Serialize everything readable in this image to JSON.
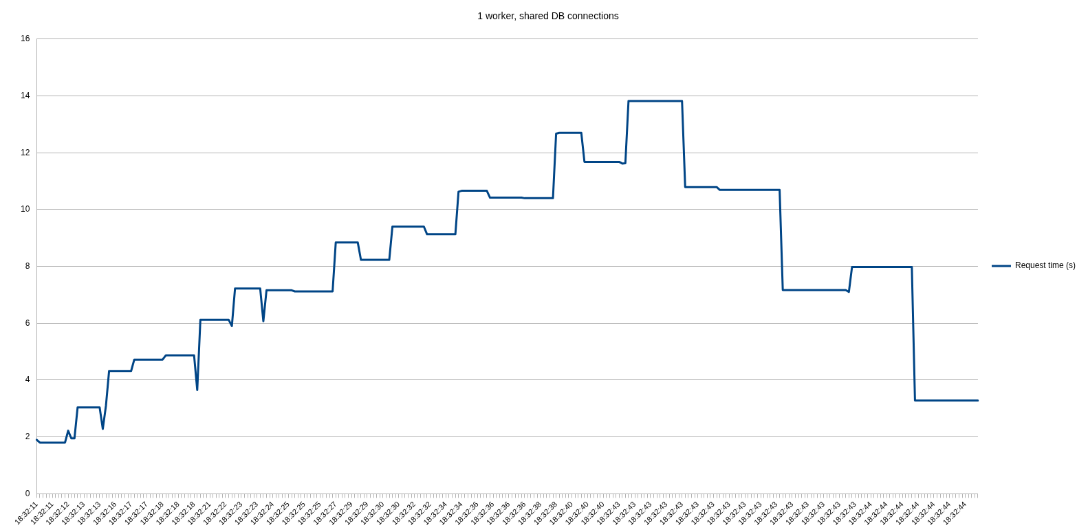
{
  "chart_data": {
    "type": "line",
    "title": "1 worker, shared DB connections",
    "categories": [
      "18:32:11",
      null,
      null,
      null,
      null,
      "18:32:11",
      null,
      null,
      null,
      null,
      "18:32:12",
      null,
      null,
      null,
      null,
      "18:32:13",
      null,
      null,
      null,
      null,
      "18:32:13",
      null,
      null,
      null,
      null,
      "18:32:16",
      null,
      null,
      null,
      null,
      "18:32:17",
      null,
      null,
      null,
      null,
      "18:32:17",
      null,
      null,
      null,
      null,
      "18:32:18",
      null,
      null,
      null,
      null,
      "18:32:18",
      null,
      null,
      null,
      null,
      "18:32:18",
      null,
      null,
      null,
      null,
      "18:32:21",
      null,
      null,
      null,
      null,
      "18:32:22",
      null,
      null,
      null,
      null,
      "18:32:23",
      null,
      null,
      null,
      null,
      "18:32:23",
      null,
      null,
      null,
      null,
      "18:32:24",
      null,
      null,
      null,
      null,
      "18:32:25",
      null,
      null,
      null,
      null,
      "18:32:25",
      null,
      null,
      null,
      null,
      "18:32:25",
      null,
      null,
      null,
      null,
      "18:32:27",
      null,
      null,
      null,
      null,
      "18:32:29",
      null,
      null,
      null,
      null,
      "18:32:29",
      null,
      null,
      null,
      null,
      "18:32:30",
      null,
      null,
      null,
      null,
      "18:32:30",
      null,
      null,
      null,
      null,
      "18:32:32",
      null,
      null,
      null,
      null,
      "18:32:32",
      null,
      null,
      null,
      null,
      "18:32:34",
      null,
      null,
      null,
      null,
      "18:32:34",
      null,
      null,
      null,
      null,
      "18:32:36",
      null,
      null,
      null,
      null,
      "18:32:36",
      null,
      null,
      null,
      null,
      "18:32:36",
      null,
      null,
      null,
      null,
      "18:32:36",
      null,
      null,
      null,
      null,
      "18:32:38",
      null,
      null,
      null,
      null,
      "18:32:38",
      null,
      null,
      null,
      null,
      "18:32:40",
      null,
      null,
      null,
      null,
      "18:32:40",
      null,
      null,
      null,
      null,
      "18:32:40",
      null,
      null,
      null,
      null,
      "18:32:43",
      null,
      null,
      null,
      null,
      "18:32:43",
      null,
      null,
      null,
      null,
      "18:32:43",
      null,
      null,
      null,
      null,
      "18:32:43",
      null,
      null,
      null,
      null,
      "18:32:43",
      null,
      null,
      null,
      null,
      "18:32:43",
      null,
      null,
      null,
      null,
      "18:32:43",
      null,
      null,
      null,
      null,
      "18:32:43",
      null,
      null,
      null,
      null,
      "18:32:43",
      null,
      null,
      null,
      null,
      "18:32:43",
      null,
      null,
      null,
      null,
      "18:32:43",
      null,
      null,
      null,
      null,
      "18:32:43",
      null,
      null,
      null,
      null,
      "18:32:43",
      null,
      null,
      null,
      null,
      "18:32:43",
      null,
      null,
      null,
      null,
      "18:32:43",
      null,
      null,
      null,
      null,
      "18:32:43",
      null,
      null,
      null,
      null,
      "18:32:44",
      null,
      null,
      null,
      null,
      "18:32:44",
      null,
      null,
      null,
      null,
      "18:32:44",
      null,
      null,
      null,
      null,
      "18:32:44",
      null,
      null,
      null,
      null,
      "18:32:44",
      null,
      null,
      null,
      null,
      "18:32:44",
      null,
      null,
      null,
      null,
      "18:32:44",
      null,
      null,
      null,
      null
    ],
    "series": [
      {
        "name": "Request time (s)",
        "color": "#004586",
        "values": [
          1.9,
          1.8,
          1.8,
          1.8,
          1.8,
          1.8,
          1.8,
          1.8,
          1.8,
          1.8,
          2.22,
          1.95,
          1.95,
          3.04,
          3.04,
          3.04,
          3.04,
          3.04,
          3.04,
          3.04,
          3.04,
          2.28,
          3.1,
          4.32,
          4.32,
          4.32,
          4.32,
          4.32,
          4.32,
          4.32,
          4.32,
          4.72,
          4.72,
          4.72,
          4.72,
          4.72,
          4.72,
          4.72,
          4.72,
          4.72,
          4.72,
          4.87,
          4.87,
          4.87,
          4.87,
          4.87,
          4.87,
          4.87,
          4.87,
          4.87,
          4.87,
          3.65,
          6.12,
          6.12,
          6.12,
          6.12,
          6.12,
          6.12,
          6.12,
          6.12,
          6.12,
          6.12,
          5.9,
          7.22,
          7.22,
          7.22,
          7.22,
          7.22,
          7.22,
          7.22,
          7.22,
          7.22,
          6.07,
          7.16,
          7.16,
          7.16,
          7.16,
          7.16,
          7.16,
          7.16,
          7.16,
          7.16,
          7.12,
          7.12,
          7.12,
          7.12,
          7.12,
          7.12,
          7.12,
          7.12,
          7.12,
          7.12,
          7.12,
          7.12,
          7.12,
          8.84,
          8.84,
          8.84,
          8.84,
          8.84,
          8.84,
          8.84,
          8.84,
          8.23,
          8.23,
          8.23,
          8.23,
          8.23,
          8.23,
          8.23,
          8.23,
          8.23,
          8.23,
          9.4,
          9.4,
          9.4,
          9.4,
          9.4,
          9.4,
          9.4,
          9.4,
          9.4,
          9.4,
          9.4,
          9.13,
          9.13,
          9.13,
          9.13,
          9.13,
          9.13,
          9.13,
          9.13,
          9.13,
          9.13,
          10.63,
          10.66,
          10.66,
          10.66,
          10.66,
          10.66,
          10.66,
          10.66,
          10.66,
          10.66,
          10.42,
          10.42,
          10.42,
          10.42,
          10.42,
          10.42,
          10.42,
          10.42,
          10.42,
          10.42,
          10.42,
          10.4,
          10.4,
          10.4,
          10.4,
          10.4,
          10.4,
          10.4,
          10.4,
          10.4,
          10.4,
          12.67,
          12.7,
          12.7,
          12.7,
          12.7,
          12.7,
          12.7,
          12.7,
          12.7,
          11.68,
          11.68,
          11.68,
          11.68,
          11.68,
          11.68,
          11.68,
          11.68,
          11.68,
          11.68,
          11.68,
          11.68,
          11.62,
          11.63,
          13.82,
          13.82,
          13.82,
          13.82,
          13.82,
          13.82,
          13.82,
          13.82,
          13.82,
          13.82,
          13.82,
          13.82,
          13.82,
          13.82,
          13.82,
          13.82,
          13.82,
          13.82,
          10.79,
          10.79,
          10.79,
          10.79,
          10.79,
          10.79,
          10.79,
          10.79,
          10.79,
          10.79,
          10.79,
          10.69,
          10.69,
          10.69,
          10.69,
          10.69,
          10.69,
          10.69,
          10.69,
          10.69,
          10.69,
          10.69,
          10.69,
          10.69,
          10.69,
          10.69,
          10.69,
          10.69,
          10.69,
          10.69,
          10.69,
          7.17,
          7.17,
          7.17,
          7.17,
          7.17,
          7.17,
          7.17,
          7.17,
          7.17,
          7.17,
          7.17,
          7.17,
          7.17,
          7.17,
          7.17,
          7.17,
          7.17,
          7.17,
          7.17,
          7.17,
          7.17,
          7.1,
          7.98,
          7.98,
          7.98,
          7.98,
          7.98,
          7.98,
          7.98,
          7.98,
          7.98,
          7.98,
          7.98,
          7.98,
          7.98,
          7.98,
          7.98,
          7.98,
          7.98,
          7.98,
          7.98,
          7.98,
          3.28,
          3.28,
          3.28,
          3.28,
          3.28,
          3.28,
          3.28,
          3.28,
          3.28,
          3.28,
          3.28,
          3.28,
          3.28,
          3.28,
          3.28,
          3.28,
          3.28,
          3.28,
          3.28,
          3.28,
          3.28
        ]
      }
    ],
    "ylim": [
      0,
      16
    ],
    "yticks": [
      0,
      2,
      4,
      6,
      8,
      10,
      12,
      14,
      16
    ],
    "grid": "y",
    "legend": "right",
    "marker": "none",
    "line_style": "solid"
  }
}
